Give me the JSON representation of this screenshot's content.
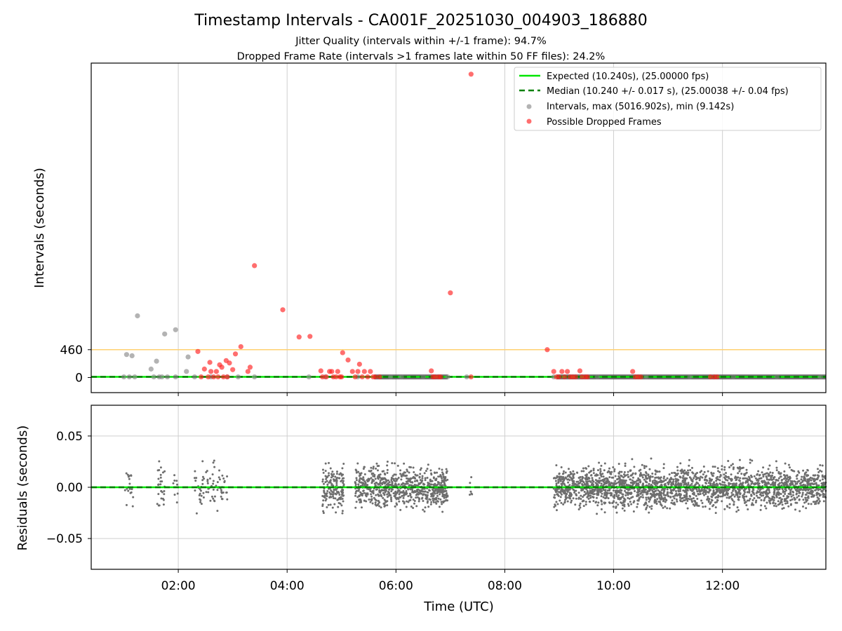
{
  "title": "Timestamp Intervals - CA001F_20251030_004903_186880",
  "subtitle_1": "Jitter Quality (intervals within +/-1 frame): 94.7%",
  "subtitle_2": "Dropped Frame Rate (intervals >1 frames late within 50 FF files): 24.2%",
  "xlabel": "Time (UTC)",
  "colors": {
    "expected": "#00e600",
    "median": "#008000",
    "intervals": "#808080",
    "dropped": "#ff2020",
    "threshold": "#ffd070",
    "residual": "#6e6e6e"
  },
  "chart_data": [
    {
      "type": "scatter",
      "panel": "top",
      "ylabel": "Intervals (seconds)",
      "yticks": [
        0,
        460
      ],
      "ylim": [
        -250,
        5200
      ],
      "xlim_hours": [
        0.4,
        13.9
      ],
      "xticks": [
        "02:00",
        "04:00",
        "06:00",
        "08:00",
        "10:00",
        "12:00"
      ],
      "grid": "x",
      "legend_position": "top-right",
      "threshold_line": 460,
      "legend": [
        "Expected (10.240s), (25.00000 fps)",
        "Median (10.240 +/- 0.017 s), (25.00038 +/- 0.04 fps)",
        "Intervals, max (5016.902s), min (9.142s)",
        "Possible Dropped Frames"
      ],
      "series": [
        {
          "name": "Expected (10.240s), (25.00000 fps)",
          "style": "line",
          "y": 10.24
        },
        {
          "name": "Median (10.240 +/- 0.017 s), (25.00038 +/- 0.04 fps)",
          "style": "dashed",
          "y": 10.24
        },
        {
          "name": "Intervals, max (5016.902s), min (9.142s)",
          "style": "points",
          "points": [
            [
              1.0,
              10
            ],
            [
              1.05,
              380
            ],
            [
              1.1,
              10
            ],
            [
              1.15,
              360
            ],
            [
              1.2,
              10
            ],
            [
              1.25,
              1020
            ],
            [
              1.5,
              140
            ],
            [
              1.55,
              10
            ],
            [
              1.6,
              270
            ],
            [
              1.65,
              10
            ],
            [
              1.7,
              10
            ],
            [
              1.75,
              720
            ],
            [
              1.8,
              10
            ],
            [
              1.95,
              790
            ],
            [
              1.95,
              10
            ],
            [
              2.15,
              100
            ],
            [
              2.18,
              340
            ],
            [
              2.3,
              10
            ],
            [
              2.6,
              10
            ],
            [
              2.9,
              10
            ],
            [
              3.1,
              10
            ],
            [
              3.4,
              10
            ],
            [
              4.4,
              10
            ],
            [
              4.7,
              10
            ],
            [
              5.3,
              10
            ],
            [
              5.9,
              10
            ],
            [
              6.1,
              10
            ],
            [
              6.5,
              10
            ],
            [
              6.95,
              10
            ],
            [
              7.3,
              10
            ],
            [
              8.9,
              10
            ],
            [
              9.7,
              10
            ],
            [
              10.6,
              10
            ],
            [
              11.4,
              10
            ],
            [
              12.2,
              10
            ],
            [
              13.0,
              10
            ],
            [
              13.8,
              10
            ]
          ]
        },
        {
          "name": "Possible Dropped Frames",
          "style": "points",
          "points": [
            [
              2.36,
              430
            ],
            [
              2.42,
              10
            ],
            [
              2.48,
              140
            ],
            [
              2.55,
              10
            ],
            [
              2.6,
              100
            ],
            [
              2.58,
              250
            ],
            [
              2.65,
              10
            ],
            [
              2.7,
              100
            ],
            [
              2.73,
              10
            ],
            [
              2.76,
              210
            ],
            [
              2.8,
              170
            ],
            [
              2.83,
              10
            ],
            [
              2.88,
              280
            ],
            [
              2.9,
              10
            ],
            [
              2.94,
              240
            ],
            [
              3.0,
              130
            ],
            [
              3.05,
              390
            ],
            [
              3.15,
              510
            ],
            [
              3.28,
              100
            ],
            [
              3.32,
              170
            ],
            [
              3.4,
              1850
            ],
            [
              3.92,
              1120
            ],
            [
              4.22,
              670
            ],
            [
              4.42,
              680
            ],
            [
              4.62,
              110
            ],
            [
              4.65,
              10
            ],
            [
              4.72,
              10
            ],
            [
              4.78,
              100
            ],
            [
              4.82,
              100
            ],
            [
              4.85,
              10
            ],
            [
              4.9,
              10
            ],
            [
              4.93,
              100
            ],
            [
              4.97,
              10
            ],
            [
              5.0,
              10
            ],
            [
              5.02,
              410
            ],
            [
              5.12,
              290
            ],
            [
              5.2,
              100
            ],
            [
              5.25,
              10
            ],
            [
              5.3,
              100
            ],
            [
              5.33,
              220
            ],
            [
              5.38,
              10
            ],
            [
              5.42,
              100
            ],
            [
              5.48,
              10
            ],
            [
              5.53,
              100
            ],
            [
              5.58,
              10
            ],
            [
              5.62,
              10
            ],
            [
              5.7,
              10
            ],
            [
              6.65,
              110
            ],
            [
              6.68,
              10
            ],
            [
              6.72,
              10
            ],
            [
              6.78,
              10
            ],
            [
              6.82,
              10
            ],
            [
              7.0,
              1400
            ],
            [
              7.38,
              10
            ],
            [
              7.38,
              5016.9
            ],
            [
              8.78,
              460
            ],
            [
              8.9,
              100
            ],
            [
              8.95,
              10
            ],
            [
              9.0,
              10
            ],
            [
              9.05,
              100
            ],
            [
              9.1,
              10
            ],
            [
              9.15,
              100
            ],
            [
              9.2,
              10
            ],
            [
              9.25,
              10
            ],
            [
              9.3,
              10
            ],
            [
              9.38,
              110
            ],
            [
              9.42,
              10
            ],
            [
              9.48,
              10
            ],
            [
              9.52,
              10
            ],
            [
              10.35,
              100
            ],
            [
              10.4,
              10
            ],
            [
              10.45,
              10
            ],
            [
              10.5,
              10
            ],
            [
              11.78,
              10
            ],
            [
              11.85,
              10
            ],
            [
              11.9,
              10
            ]
          ]
        }
      ]
    },
    {
      "type": "scatter",
      "panel": "bottom",
      "ylabel": "Residuals (seconds)",
      "xlabel": "Time (UTC)",
      "yticks": [
        "0.05",
        "0.00",
        "−0.05"
      ],
      "ylim": [
        -0.08,
        0.08
      ],
      "xlim_hours": [
        0.4,
        13.9
      ],
      "xticks": [
        "02:00",
        "04:00",
        "06:00",
        "08:00",
        "10:00",
        "12:00"
      ],
      "grid": "both",
      "series": [
        {
          "name": "Median",
          "style": "dashed",
          "y": 0
        },
        {
          "name": "Residuals",
          "style": "points",
          "clusters": [
            {
              "x_range": [
                1.0,
                1.2
              ],
              "count": 18,
              "spread": 0.02
            },
            {
              "x_range": [
                1.6,
                1.75
              ],
              "count": 28,
              "spread": 0.02
            },
            {
              "x_range": [
                1.9,
                2.0
              ],
              "count": 8,
              "spread": 0.012
            },
            {
              "x_range": [
                2.3,
                2.45
              ],
              "count": 22,
              "spread": 0.02
            },
            {
              "x_range": [
                2.45,
                2.9
              ],
              "count": 55,
              "spread": 0.02
            },
            {
              "x_range": [
                4.65,
                5.05
              ],
              "count": 150,
              "spread": 0.02
            },
            {
              "x_range": [
                5.25,
                6.95
              ],
              "count": 750,
              "spread": 0.017
            },
            {
              "x_range": [
                7.35,
                7.4
              ],
              "count": 6,
              "spread": 0.012
            },
            {
              "x_range": [
                8.9,
                13.9
              ],
              "count": 2300,
              "spread": 0.017
            }
          ]
        }
      ]
    }
  ]
}
